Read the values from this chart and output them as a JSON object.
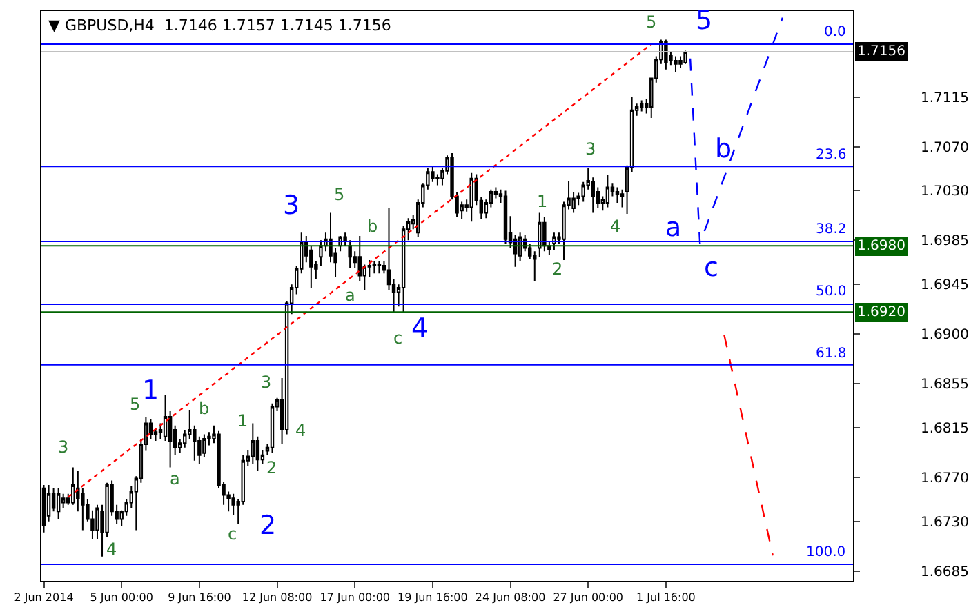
{
  "chart_data": {
    "type": "candlestick",
    "title": "▼ GBPUSD,H4  1.7146 1.7157 1.7145 1.7156",
    "categories": [
      "2 Jun 2014",
      null,
      null,
      null,
      null,
      null,
      null,
      null,
      null,
      null,
      null,
      null,
      null,
      null,
      null,
      null,
      "5 Jun 00:00",
      null,
      null,
      null,
      null,
      null,
      null,
      null,
      null,
      null,
      null,
      null,
      null,
      null,
      null,
      null,
      "9 Jun 16:00",
      null,
      null,
      null,
      null,
      null,
      null,
      null,
      null,
      null,
      null,
      null,
      null,
      null,
      null,
      null,
      "12 Jun 08:00",
      null,
      null,
      null,
      null,
      null,
      null,
      null,
      null,
      null,
      null,
      null,
      null,
      null,
      null,
      null,
      "17 Jun 00:00",
      null,
      null,
      null,
      null,
      null,
      null,
      null,
      null,
      null,
      null,
      null,
      null,
      null,
      null,
      null,
      "19 Jun 16:00",
      null,
      null,
      null,
      null,
      null,
      null,
      null,
      null,
      null,
      null,
      null,
      null,
      null,
      null,
      null,
      "24 Jun 08:00",
      null,
      null,
      null,
      null,
      null,
      null,
      null,
      null,
      null,
      null,
      null,
      null,
      null,
      null,
      null,
      "27 Jun 00:00",
      null,
      null,
      null,
      null,
      null,
      null,
      null,
      null,
      null,
      null,
      null,
      null,
      null,
      null,
      null,
      "1 Jul 16:00",
      null,
      null,
      null,
      null,
      null,
      null,
      null,
      null,
      null,
      null,
      null,
      null,
      null,
      null,
      null,
      null,
      null,
      null,
      null,
      null,
      null,
      null,
      null,
      null,
      null,
      null,
      null,
      null,
      null,
      null,
      null,
      null,
      null,
      null,
      null,
      null,
      null,
      null
    ],
    "ohlc": [
      [
        1.676,
        1.6763,
        1.672,
        1.6726
      ],
      [
        1.6735,
        1.6763,
        1.673,
        1.6755
      ],
      [
        1.6755,
        1.676,
        1.6739,
        1.6742
      ],
      [
        1.6739,
        1.676,
        1.6732,
        1.6755
      ],
      [
        1.6747,
        1.6755,
        1.6742,
        1.6751
      ],
      [
        1.6751,
        1.6755,
        1.6745,
        1.6747
      ],
      [
        1.6747,
        1.6779,
        1.6745,
        1.6763
      ],
      [
        1.676,
        1.6776,
        1.6739,
        1.6751
      ],
      [
        1.6755,
        1.676,
        1.6722,
        1.6745
      ],
      [
        1.6745,
        1.675,
        1.673,
        1.6732
      ],
      [
        1.6732,
        1.674,
        1.6714,
        1.6722
      ],
      [
        1.6722,
        1.6745,
        1.6714,
        1.6742
      ],
      [
        1.6739,
        1.6745,
        1.6698,
        1.672
      ],
      [
        1.672,
        1.6765,
        1.6716,
        1.6763
      ],
      [
        1.6763,
        1.6767,
        1.6735,
        1.6739
      ],
      [
        1.6739,
        1.6745,
        1.6728,
        1.6732
      ],
      [
        1.6732,
        1.674,
        1.6726,
        1.6739
      ],
      [
        1.6739,
        1.675,
        1.6735,
        1.6747
      ],
      [
        1.6747,
        1.6762,
        1.6742,
        1.6757
      ],
      [
        1.6757,
        1.6771,
        1.6722,
        1.6769
      ],
      [
        1.6769,
        1.6805,
        1.6765,
        1.68
      ],
      [
        1.68,
        1.6825,
        1.6794,
        1.6819
      ],
      [
        1.6819,
        1.6823,
        1.6805,
        1.6809
      ],
      [
        1.6809,
        1.6815,
        1.6803,
        1.6811
      ],
      [
        1.6811,
        1.6819,
        1.6805,
        1.6813
      ],
      [
        1.6807,
        1.6845,
        1.6803,
        1.6825
      ],
      [
        1.6825,
        1.683,
        1.6779,
        1.6803
      ],
      [
        1.6813,
        1.6817,
        1.679,
        1.6797
      ],
      [
        1.6797,
        1.6805,
        1.6792,
        1.6801
      ],
      [
        1.6801,
        1.6813,
        1.6797,
        1.6809
      ],
      [
        1.6809,
        1.6831,
        1.6805,
        1.6813
      ],
      [
        1.6813,
        1.6817,
        1.6785,
        1.6803
      ],
      [
        1.6803,
        1.6807,
        1.6782,
        1.679
      ],
      [
        1.6792,
        1.6809,
        1.6788,
        1.6805
      ],
      [
        1.6805,
        1.6811,
        1.6799,
        1.6807
      ],
      [
        1.6805,
        1.6817,
        1.6801,
        1.6809
      ],
      [
        1.6809,
        1.6812,
        1.676,
        1.6763
      ],
      [
        1.6763,
        1.6766,
        1.6745,
        1.6754
      ],
      [
        1.6754,
        1.6757,
        1.6739,
        1.6751
      ],
      [
        1.6751,
        1.6755,
        1.6736,
        1.6745
      ],
      [
        1.6745,
        1.675,
        1.6728,
        1.6748
      ],
      [
        1.6748,
        1.679,
        1.6745,
        1.6785
      ],
      [
        1.6785,
        1.6795,
        1.678,
        1.6789
      ],
      [
        1.6789,
        1.6819,
        1.6782,
        1.6803
      ],
      [
        1.6803,
        1.6807,
        1.6776,
        1.6786
      ],
      [
        1.6786,
        1.6795,
        1.6782,
        1.679
      ],
      [
        1.6794,
        1.68,
        1.679,
        1.6797
      ],
      [
        1.6797,
        1.6837,
        1.6792,
        1.6834
      ],
      [
        1.6834,
        1.6842,
        1.683,
        1.684
      ],
      [
        1.684,
        1.686,
        1.68,
        1.6813
      ],
      [
        1.6813,
        1.693,
        1.6809,
        1.6928
      ],
      [
        1.6928,
        1.6945,
        1.6918,
        1.6942
      ],
      [
        1.6942,
        1.6962,
        1.6936,
        1.6959
      ],
      [
        1.6959,
        1.6992,
        1.6955,
        1.6983
      ],
      [
        1.6983,
        1.6989,
        1.6965,
        1.6971
      ],
      [
        1.6976,
        1.698,
        1.6942,
        1.6961
      ],
      [
        1.6963,
        1.6966,
        1.695,
        1.6959
      ],
      [
        1.697,
        1.6985,
        1.6962,
        1.698
      ],
      [
        1.698,
        1.6992,
        1.6975,
        1.6986
      ],
      [
        1.6986,
        1.701,
        1.6965,
        1.6971
      ],
      [
        1.6973,
        1.6978,
        1.6952,
        1.6965
      ],
      [
        1.698,
        1.6989,
        1.6975,
        1.6988
      ],
      [
        1.6988,
        1.6992,
        1.698,
        1.6985
      ],
      [
        1.698,
        1.6985,
        1.696,
        1.697
      ],
      [
        1.697,
        1.6975,
        1.696,
        1.6965
      ],
      [
        1.697,
        1.6989,
        1.6948,
        1.6953
      ],
      [
        1.6953,
        1.6963,
        1.694,
        1.6961
      ],
      [
        1.6961,
        1.6967,
        1.6952,
        1.6962
      ],
      [
        1.6962,
        1.6966,
        1.6955,
        1.6963
      ],
      [
        1.6963,
        1.6966,
        1.6955,
        1.6962
      ],
      [
        1.6962,
        1.6966,
        1.6955,
        1.6958
      ],
      [
        1.6958,
        1.7014,
        1.694,
        1.6945
      ],
      [
        1.6945,
        1.695,
        1.692,
        1.6938
      ],
      [
        1.6938,
        1.6945,
        1.6925,
        1.6942
      ],
      [
        1.6942,
        1.6998,
        1.692,
        1.6995
      ],
      [
        1.6995,
        1.7005,
        1.6985,
        1.7002
      ],
      [
        1.7,
        1.7008,
        1.6995,
        1.7004
      ],
      [
        1.6992,
        1.7022,
        1.6988,
        1.7019
      ],
      [
        1.7019,
        1.7037,
        1.7015,
        1.7035
      ],
      [
        1.7035,
        1.7051,
        1.7031,
        1.7047
      ],
      [
        1.7047,
        1.7052,
        1.7038,
        1.7041
      ],
      [
        1.7041,
        1.7045,
        1.7035,
        1.7042
      ],
      [
        1.7041,
        1.7051,
        1.7035,
        1.7048
      ],
      [
        1.7048,
        1.7062,
        1.7045,
        1.706
      ],
      [
        1.706,
        1.7064,
        1.7022,
        1.7025
      ],
      [
        1.7025,
        1.7029,
        1.7006,
        1.701
      ],
      [
        1.7012,
        1.702,
        1.7004,
        1.7017
      ],
      [
        1.7017,
        1.7022,
        1.7011,
        1.7015
      ],
      [
        1.7015,
        1.7046,
        1.7002,
        1.7041
      ],
      [
        1.7041,
        1.7045,
        1.7017,
        1.7021
      ],
      [
        1.7021,
        1.7024,
        1.7004,
        1.701
      ],
      [
        1.701,
        1.7022,
        1.7005,
        1.7019
      ],
      [
        1.7019,
        1.7031,
        1.7015,
        1.7029
      ],
      [
        1.7029,
        1.7033,
        1.7023,
        1.7027
      ],
      [
        1.7027,
        1.7031,
        1.7019,
        1.7025
      ],
      [
        1.7025,
        1.703,
        1.6982,
        1.6986
      ],
      [
        1.6992,
        1.7007,
        1.6978,
        1.6983
      ],
      [
        1.6986,
        1.699,
        1.6961,
        1.6973
      ],
      [
        1.6971,
        1.6992,
        1.6966,
        1.6988
      ],
      [
        1.6986,
        1.699,
        1.6975,
        1.6978
      ],
      [
        1.6978,
        1.6982,
        1.6968,
        1.6971
      ],
      [
        1.6971,
        1.6975,
        1.6948,
        1.6968
      ],
      [
        1.6978,
        1.701,
        1.697,
        1.7001
      ],
      [
        1.7001,
        1.7006,
        1.6975,
        1.698
      ],
      [
        1.698,
        1.6984,
        1.6972,
        1.6977
      ],
      [
        1.6982,
        1.6992,
        1.6976,
        1.6988
      ],
      [
        1.6988,
        1.6992,
        1.6982,
        1.6986
      ],
      [
        1.6986,
        1.702,
        1.6967,
        1.7017
      ],
      [
        1.7017,
        1.7039,
        1.7013,
        1.7023
      ],
      [
        1.7014,
        1.7029,
        1.701,
        1.7023
      ],
      [
        1.7023,
        1.7028,
        1.7017,
        1.7025
      ],
      [
        1.7025,
        1.7038,
        1.702,
        1.7035
      ],
      [
        1.7035,
        1.7051,
        1.7031,
        1.7039
      ],
      [
        1.7038,
        1.7042,
        1.701,
        1.7025
      ],
      [
        1.7029,
        1.7033,
        1.7014,
        1.7019
      ],
      [
        1.7019,
        1.7025,
        1.7012,
        1.7022
      ],
      [
        1.7019,
        1.7044,
        1.7015,
        1.7033
      ],
      [
        1.7033,
        1.7037,
        1.7025,
        1.7029
      ],
      [
        1.7029,
        1.7033,
        1.7019,
        1.7027
      ],
      [
        1.7027,
        1.7031,
        1.7015,
        1.7025
      ],
      [
        1.7029,
        1.7053,
        1.7009,
        1.7051
      ],
      [
        1.7051,
        1.7115,
        1.7047,
        1.7103
      ],
      [
        1.7103,
        1.7109,
        1.7098,
        1.7106
      ],
      [
        1.7106,
        1.7112,
        1.7102,
        1.7109
      ],
      [
        1.7109,
        1.7113,
        1.71,
        1.7106
      ],
      [
        1.7106,
        1.7132,
        1.7096,
        1.7132
      ],
      [
        1.7132,
        1.7152,
        1.7128,
        1.7149
      ],
      [
        1.7149,
        1.7167,
        1.7145,
        1.7165
      ],
      [
        1.7165,
        1.7167,
        1.714,
        1.7146
      ],
      [
        1.7153,
        1.7156,
        1.7144,
        1.7148
      ],
      [
        1.7148,
        1.7152,
        1.7138,
        1.7145
      ],
      [
        1.7145,
        1.7152,
        1.7141,
        1.7148
      ],
      [
        1.7146,
        1.7157,
        1.7145,
        1.7156
      ],
      null,
      null,
      null,
      null,
      null,
      null,
      null,
      null,
      null,
      null,
      null,
      null,
      null,
      null,
      null,
      null,
      null,
      null,
      null,
      null,
      null,
      null,
      null,
      null,
      null,
      null,
      null,
      null,
      null,
      null,
      null,
      null,
      null,
      null
    ],
    "series": [
      {
        "type": "line",
        "color": "#ff0000",
        "line_style": "dotted",
        "values": [
          null,
          null,
          null,
          null,
          null,
          1.6752,
          null,
          null,
          null,
          null,
          null,
          null,
          null,
          null,
          null,
          null,
          null,
          null,
          null,
          null,
          null,
          null,
          null,
          null,
          null,
          null,
          null,
          null,
          null,
          null,
          null,
          null,
          null,
          null,
          null,
          null,
          null,
          null,
          null,
          null,
          null,
          null,
          null,
          null,
          null,
          null,
          null,
          null,
          null,
          null,
          null,
          null,
          null,
          null,
          null,
          null,
          null,
          null,
          null,
          null,
          null,
          null,
          null,
          null,
          null,
          null,
          null,
          null,
          null,
          null,
          null,
          null,
          null,
          null,
          null,
          null,
          null,
          null,
          null,
          null,
          null,
          null,
          null,
          null,
          null,
          null,
          null,
          null,
          null,
          null,
          null,
          null,
          null,
          null,
          null,
          null,
          null,
          null,
          null,
          null,
          null,
          null,
          null,
          null,
          null,
          null,
          null,
          null,
          null,
          null,
          null,
          null,
          null,
          null,
          null,
          null,
          null,
          null,
          null,
          null,
          null,
          null,
          null,
          null,
          null,
          1.7163,
          null,
          null,
          null,
          null,
          null,
          null,
          null,
          null,
          null,
          null,
          null,
          null,
          null,
          null,
          null,
          null,
          null,
          null,
          null,
          null,
          null,
          null,
          null,
          null,
          null,
          null,
          null,
          null,
          null,
          null,
          null,
          null,
          null,
          null,
          null,
          null,
          null,
          null,
          null,
          null,
          null
        ]
      },
      {
        "type": "line",
        "color": "#0000ff",
        "line_style": "dashed",
        "values": [
          null,
          null,
          null,
          null,
          null,
          null,
          null,
          null,
          null,
          null,
          null,
          null,
          null,
          null,
          null,
          null,
          null,
          null,
          null,
          null,
          null,
          null,
          null,
          null,
          null,
          null,
          null,
          null,
          null,
          null,
          null,
          null,
          null,
          null,
          null,
          null,
          null,
          null,
          null,
          null,
          null,
          null,
          null,
          null,
          null,
          null,
          null,
          null,
          null,
          null,
          null,
          null,
          null,
          null,
          null,
          null,
          null,
          null,
          null,
          null,
          null,
          null,
          null,
          null,
          null,
          null,
          null,
          null,
          null,
          null,
          null,
          null,
          null,
          null,
          null,
          null,
          null,
          null,
          null,
          null,
          null,
          null,
          null,
          null,
          null,
          null,
          null,
          null,
          null,
          null,
          null,
          null,
          null,
          null,
          null,
          null,
          null,
          null,
          null,
          null,
          null,
          null,
          null,
          null,
          null,
          null,
          null,
          null,
          null,
          null,
          null,
          null,
          null,
          null,
          null,
          null,
          null,
          null,
          null,
          null,
          null,
          null,
          null,
          null,
          null,
          null,
          null,
          null,
          null,
          null,
          null,
          null,
          null,
          1.715,
          null,
          1.6982,
          null,
          null,
          null,
          null,
          null,
          null,
          null,
          null,
          null,
          null,
          null,
          null,
          null,
          null,
          null,
          null,
          1.7187,
          null,
          null,
          null,
          null,
          null,
          null,
          null,
          null,
          null,
          null,
          null,
          null,
          null,
          null
        ]
      },
      {
        "type": "line",
        "color": "#ff0000",
        "line_style": "dashed",
        "values": [
          null,
          null,
          null,
          null,
          null,
          null,
          null,
          null,
          null,
          null,
          null,
          null,
          null,
          null,
          null,
          null,
          null,
          null,
          null,
          null,
          null,
          null,
          null,
          null,
          null,
          null,
          null,
          null,
          null,
          null,
          null,
          null,
          null,
          null,
          null,
          null,
          null,
          null,
          null,
          null,
          null,
          null,
          null,
          null,
          null,
          null,
          null,
          null,
          null,
          null,
          null,
          null,
          null,
          null,
          null,
          null,
          null,
          null,
          null,
          null,
          null,
          null,
          null,
          null,
          null,
          null,
          null,
          null,
          null,
          null,
          null,
          null,
          null,
          null,
          null,
          null,
          null,
          null,
          null,
          null,
          null,
          null,
          null,
          null,
          null,
          null,
          null,
          null,
          null,
          null,
          null,
          null,
          null,
          null,
          null,
          null,
          null,
          null,
          null,
          null,
          null,
          null,
          null,
          null,
          null,
          null,
          null,
          null,
          null,
          null,
          null,
          null,
          null,
          null,
          null,
          null,
          null,
          null,
          null,
          null,
          null,
          null,
          null,
          null,
          null,
          null,
          null,
          null,
          null,
          null,
          null,
          null,
          null,
          null,
          null,
          null,
          null,
          null,
          null,
          null,
          1.6899,
          null,
          null,
          null,
          null,
          null,
          null,
          null,
          null,
          null,
          1.6699,
          null,
          null,
          null,
          null,
          null,
          null,
          null,
          null,
          null,
          null,
          null,
          null,
          null,
          null,
          null,
          null
        ]
      }
    ],
    "ylim": [
      1.6676,
      1.7193
    ],
    "yticks": [
      {
        "value": 1.7115,
        "label": "1.7115"
      },
      {
        "value": 1.707,
        "label": "1.7070"
      },
      {
        "value": 1.703,
        "label": "1.7030"
      },
      {
        "value": 1.6985,
        "label": "1.6985"
      },
      {
        "value": 1.6945,
        "label": "1.6945"
      },
      {
        "value": 1.69,
        "label": "1.6900"
      },
      {
        "value": 1.6855,
        "label": "1.6855"
      },
      {
        "value": 1.6815,
        "label": "1.6815"
      },
      {
        "value": 1.677,
        "label": "1.6770"
      },
      {
        "value": 1.673,
        "label": "1.6730"
      },
      {
        "value": 1.6685,
        "label": "1.6685"
      }
    ],
    "ref_lines": [
      {
        "axis": "y",
        "value": 1.7163,
        "color": "#0000ff"
      },
      {
        "axis": "y",
        "value": 1.7052,
        "color": "#0000ff"
      },
      {
        "axis": "y",
        "value": 1.6984,
        "color": "#0000ff"
      },
      {
        "axis": "y",
        "value": 1.6927,
        "color": "#0000ff"
      },
      {
        "axis": "y",
        "value": 1.6872,
        "color": "#0000ff"
      },
      {
        "axis": "y",
        "value": 1.6691,
        "color": "#0000ff"
      },
      {
        "axis": "y",
        "value": 1.7156,
        "label": "1.7156",
        "color": "#c0c0c0"
      },
      {
        "axis": "y",
        "value": 1.698,
        "label": "1.6980",
        "color": "#006400"
      },
      {
        "axis": "y",
        "value": 1.692,
        "label": "1.6920",
        "color": "#006400"
      }
    ],
    "annotations": [
      "1",
      "2",
      "3",
      "4",
      "5",
      "a",
      "b",
      "c",
      "3",
      "5",
      "4",
      "a",
      "b",
      "c",
      "1",
      "3",
      "2",
      "4",
      "5",
      "b",
      "a",
      "c",
      "1",
      "2",
      "3",
      "4",
      "5",
      "0.0",
      "23.6",
      "38.2",
      "50.0",
      "61.8",
      "100.0"
    ]
  }
}
